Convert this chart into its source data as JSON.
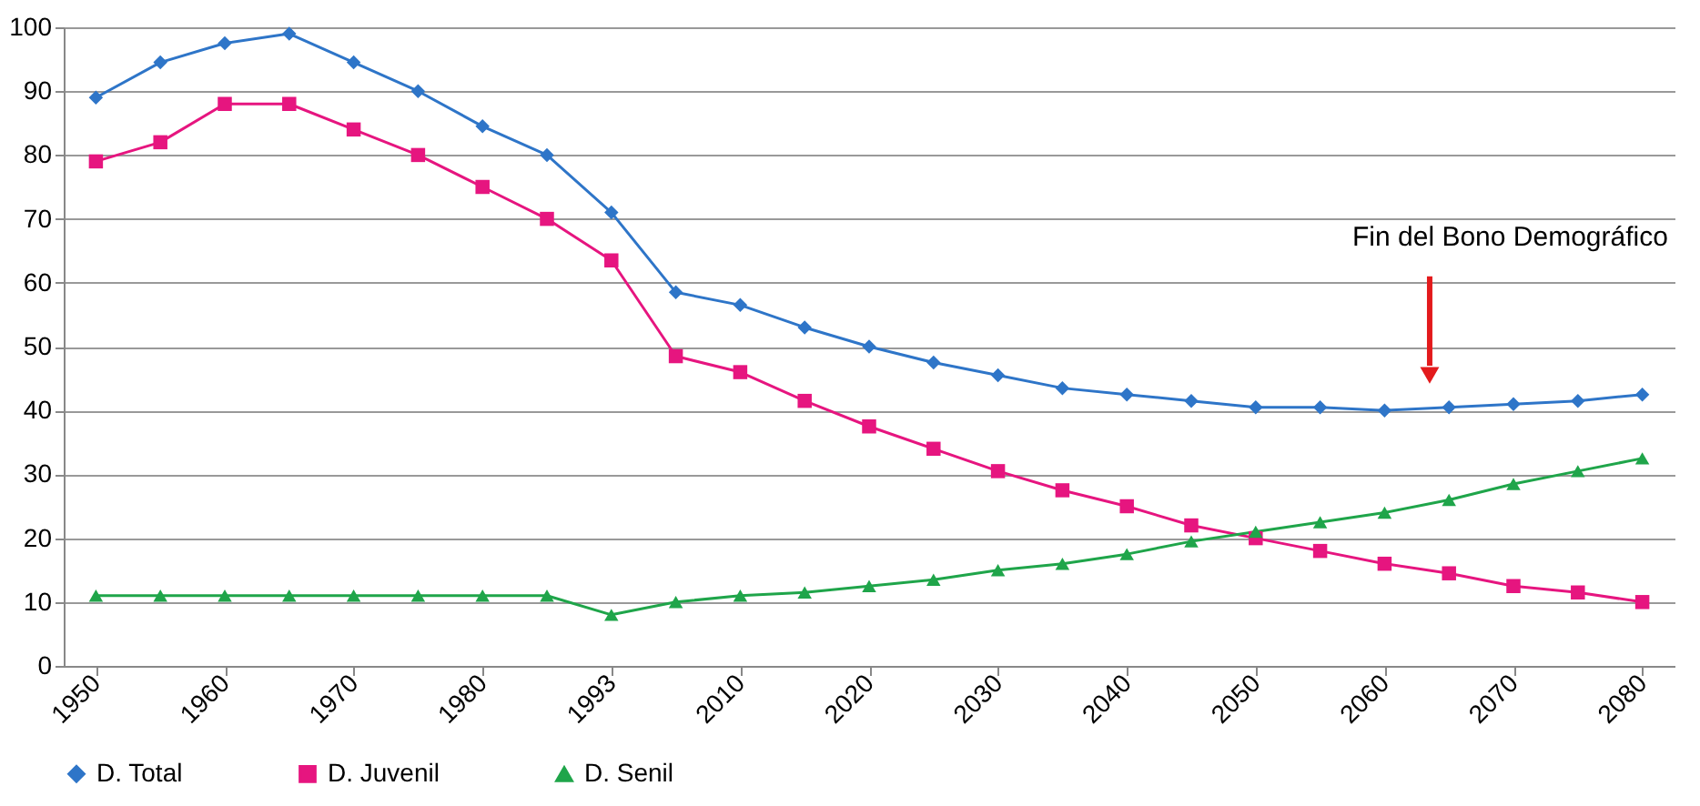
{
  "chart_data": {
    "type": "line",
    "categories": [
      "1950",
      null,
      "1960",
      null,
      "1970",
      null,
      "1980",
      null,
      "1993",
      null,
      "2010",
      null,
      "2020",
      null,
      "2030",
      null,
      "2040",
      null,
      "2050",
      null,
      "2060",
      null,
      "2070",
      null,
      "2080"
    ],
    "series": [
      {
        "name": "D. Total",
        "color": "#2e75c8",
        "marker": "diamond",
        "values": [
          89,
          94.5,
          97.5,
          99,
          94.5,
          90,
          84.5,
          80,
          71,
          58.5,
          56.5,
          53,
          50,
          47.5,
          45.5,
          43.5,
          42.5,
          41.5,
          40.5,
          40.5,
          40,
          40.5,
          41,
          41.5,
          42.5
        ]
      },
      {
        "name": "D. Juvenil",
        "color": "#e6157f",
        "marker": "square",
        "values": [
          79,
          82,
          88,
          88,
          84,
          80,
          75,
          70,
          63.5,
          48.5,
          46,
          41.5,
          37.5,
          34,
          30.5,
          27.5,
          25,
          22,
          20,
          18,
          16,
          14.5,
          12.5,
          11.5,
          10
        ]
      },
      {
        "name": "D. Senil",
        "color": "#1fa54a",
        "marker": "triangle",
        "values": [
          11,
          11,
          11,
          11,
          11,
          11,
          11,
          11,
          8,
          10,
          11,
          11.5,
          12.5,
          13.5,
          15,
          16,
          17.5,
          19.5,
          21,
          22.5,
          24,
          26,
          28.5,
          30.5,
          32.5
        ]
      }
    ],
    "ylim": [
      0,
      100
    ],
    "yticks": [
      0,
      10,
      20,
      30,
      40,
      50,
      60,
      70,
      80,
      90,
      100
    ],
    "grid": "y",
    "legend": "bottom",
    "line_style": "solid",
    "annotations": [
      "Fin del Bono Demográfico"
    ]
  }
}
